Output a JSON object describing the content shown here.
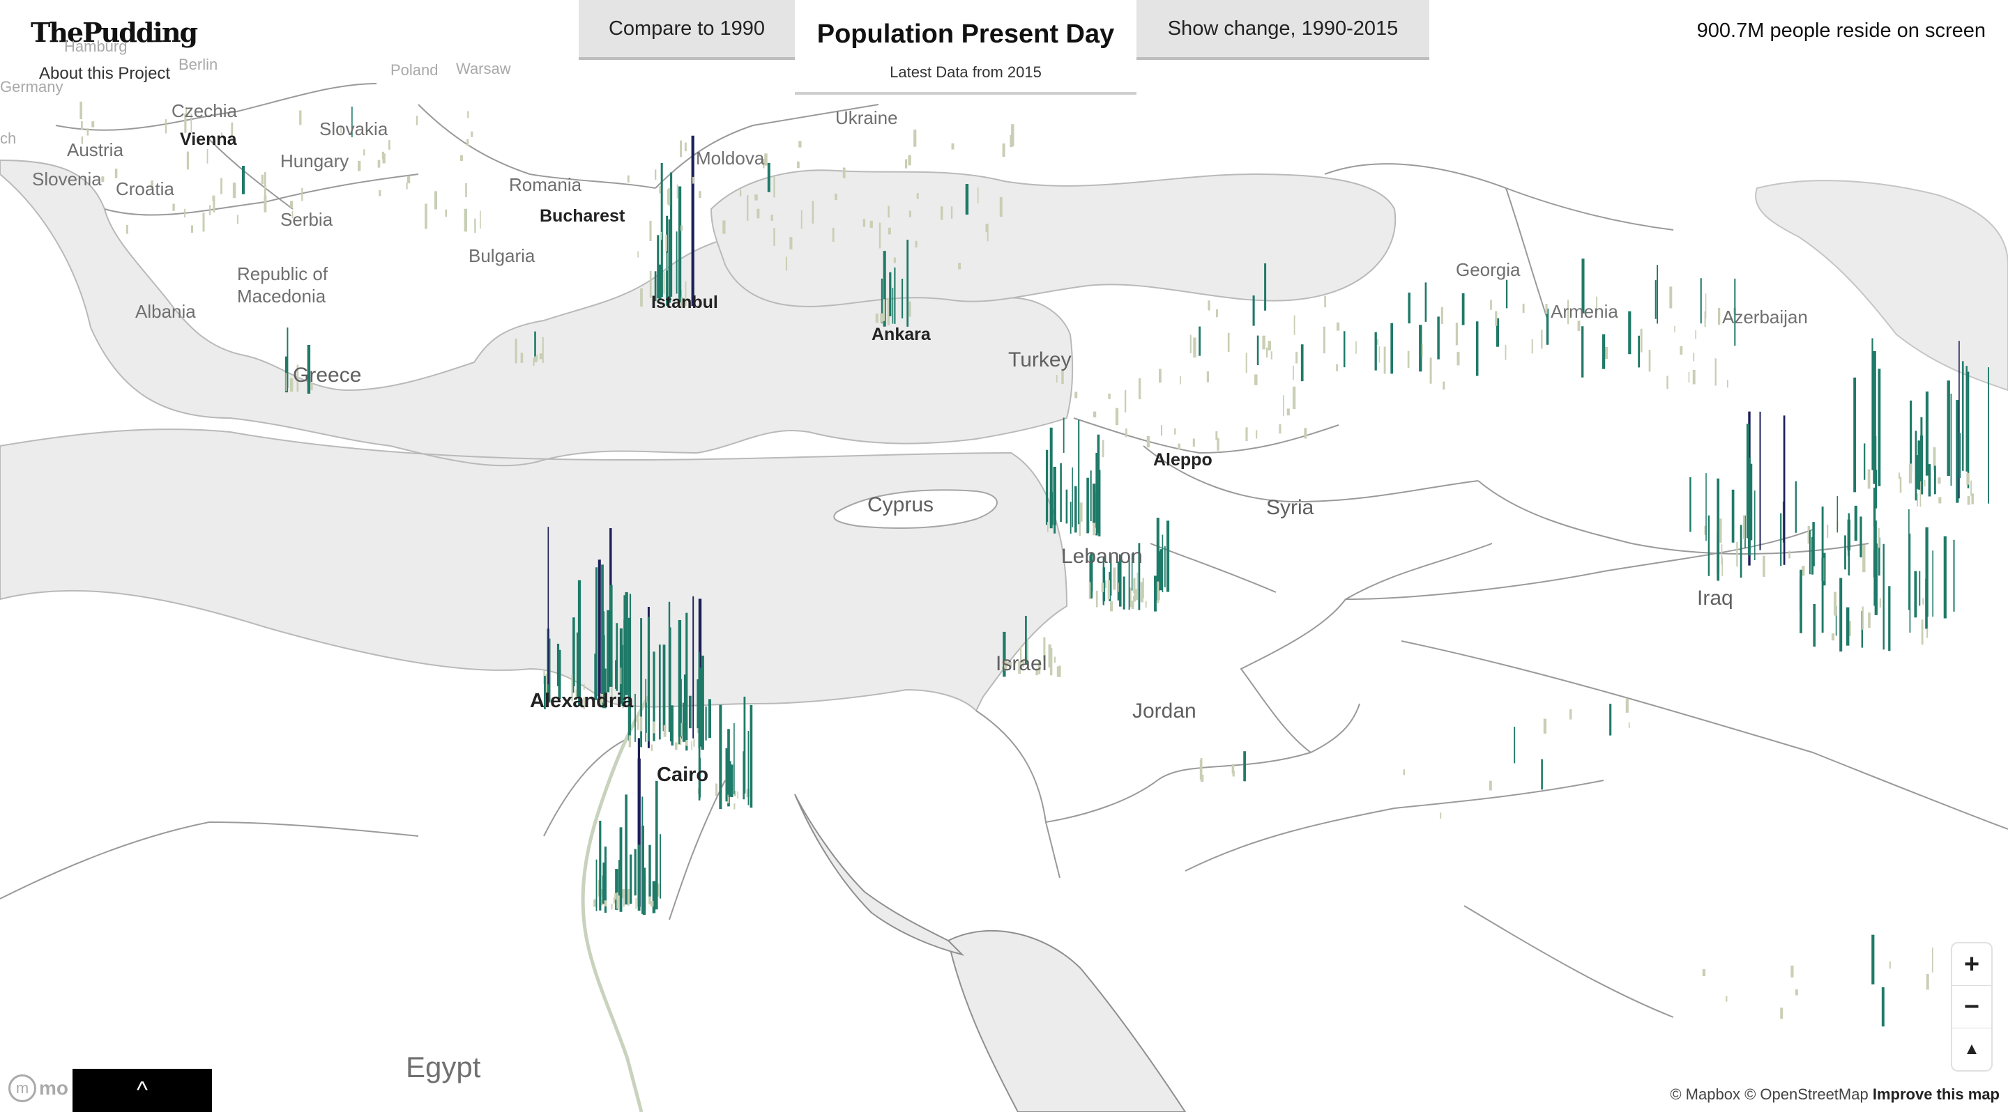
{
  "header": {
    "logo": "ThePudding",
    "about": "About this Project",
    "tab_left": "Compare to 1990",
    "tab_center_title": "Population Present Day",
    "tab_center_subtitle": "Latest Data from 2015",
    "tab_right": "Show change, 1990-2015",
    "people_count": "900.7M people reside on screen"
  },
  "colors": {
    "sea": "#ececec",
    "land": "#ffffff",
    "spike_low": "#c8cfb4",
    "spike_mid": "#1f7a68",
    "spike_high": "#1d1f5a"
  },
  "map_labels": [
    {
      "text": "Hamburg",
      "kind": "faint"
    },
    {
      "text": "Berlin",
      "kind": "faint"
    },
    {
      "text": "Poland",
      "kind": "faint"
    },
    {
      "text": "Warsaw",
      "kind": "faint"
    },
    {
      "text": "Germany",
      "kind": "faint"
    },
    {
      "text": "Czechia",
      "kind": "country"
    },
    {
      "text": "Ukraine",
      "kind": "country"
    },
    {
      "text": "Slovakia",
      "kind": "country"
    },
    {
      "text": "Vienna",
      "kind": "city"
    },
    {
      "text": "Austria",
      "kind": "country"
    },
    {
      "text": "Hungary",
      "kind": "country"
    },
    {
      "text": "Moldova",
      "kind": "country"
    },
    {
      "text": "Slovenia",
      "kind": "country"
    },
    {
      "text": "Croatia",
      "kind": "country"
    },
    {
      "text": "Romania",
      "kind": "country"
    },
    {
      "text": "Bucharest",
      "kind": "city"
    },
    {
      "text": "Serbia",
      "kind": "country"
    },
    {
      "text": "Bulgaria",
      "kind": "country"
    },
    {
      "text": "Republic of",
      "kind": "country"
    },
    {
      "text": "Macedonia",
      "kind": "country"
    },
    {
      "text": "Albania",
      "kind": "country"
    },
    {
      "text": "Istanbul",
      "kind": "city"
    },
    {
      "text": "Ankara",
      "kind": "city"
    },
    {
      "text": "Turkey",
      "kind": "country"
    },
    {
      "text": "Greece",
      "kind": "country"
    },
    {
      "text": "Georgia",
      "kind": "country"
    },
    {
      "text": "Armenia",
      "kind": "country"
    },
    {
      "text": "Azerbaijan",
      "kind": "country"
    },
    {
      "text": "Aleppo",
      "kind": "city"
    },
    {
      "text": "Cyprus",
      "kind": "country"
    },
    {
      "text": "Syria",
      "kind": "country"
    },
    {
      "text": "Lebanon",
      "kind": "country"
    },
    {
      "text": "Iraq",
      "kind": "country"
    },
    {
      "text": "Israel",
      "kind": "country"
    },
    {
      "text": "Jordan",
      "kind": "big"
    },
    {
      "text": "Alexandria",
      "kind": "city"
    },
    {
      "text": "Cairo",
      "kind": "city"
    },
    {
      "text": "Egypt",
      "kind": "huge"
    },
    {
      "text": "ch",
      "kind": "faint"
    }
  ],
  "controls": {
    "zoom_in": "+",
    "zoom_out": "−",
    "compass": "▲"
  },
  "attribution": {
    "mapbox": "© Mapbox",
    "osm": "© OpenStreetMap",
    "improve": "Improve this map",
    "mapbox_logo": "mo"
  },
  "toggle_icon": "^"
}
